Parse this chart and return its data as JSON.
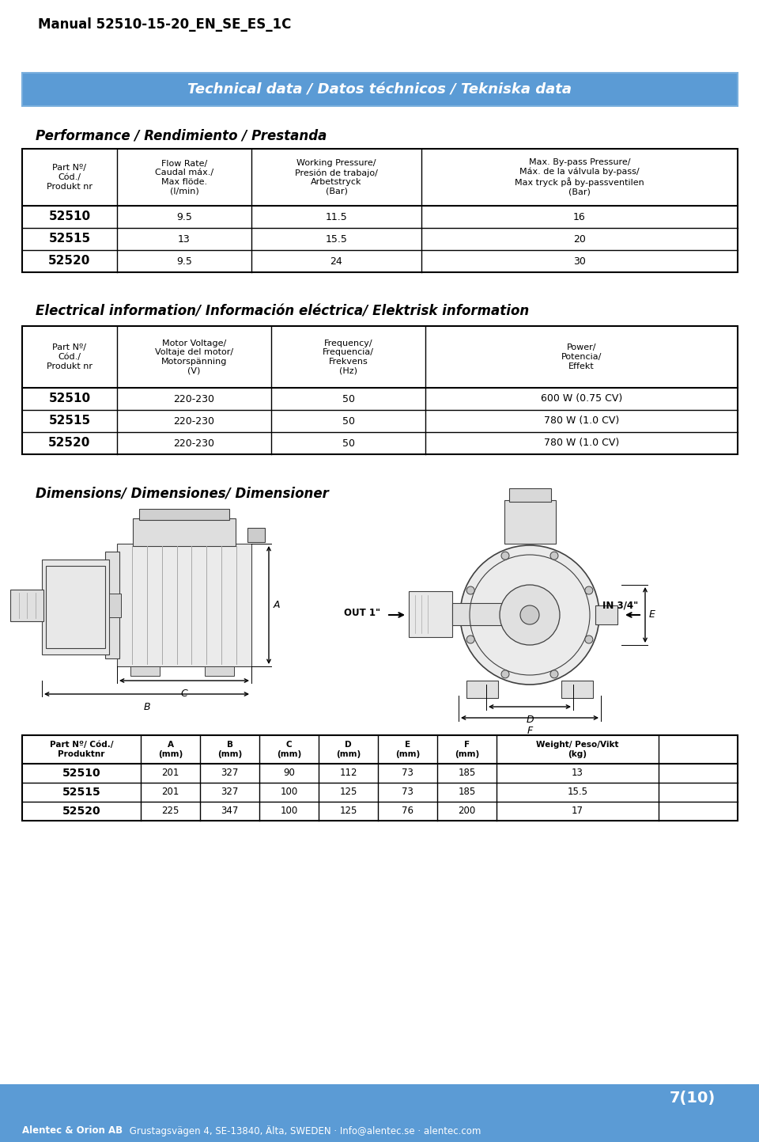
{
  "page_title": "Manual 52510-15-20_EN_SE_ES_1C",
  "banner_text": "Technical data / Datos téchnicos / Tekniska data",
  "banner_color": "#5B9BD5",
  "banner_text_color": "#FFFFFF",
  "section1_title": "Performance / Rendimiento / Prestanda",
  "perf_headers": [
    "Part Nº/\nCód./\nProdukt nr",
    "Flow Rate/\nCaudal máx./\nMax flöde.\n(l/min)",
    "Working Pressure/\nPresión de trabajo/\nArbetstryck\n(Bar)",
    "Max. By-pass Pressure/\nMáx. de la válvula by-pass/\nMax tryck på by-passventilen\n(Bar)"
  ],
  "perf_rows": [
    [
      "52510",
      "9.5",
      "11.5",
      "16"
    ],
    [
      "52515",
      "13",
      "15.5",
      "20"
    ],
    [
      "52520",
      "9.5",
      "24",
      "30"
    ]
  ],
  "section2_title": "Electrical information/ Información eléctrica/ Elektrisk information",
  "elec_headers": [
    "Part Nº/\nCód./\nProdukt nr",
    "Motor Voltage/\nVoltaje del motor/\nMotorspänning\n(V)",
    "Frequency/\nFrequencia/\nFrekvens\n(Hz)",
    "Power/\nPotencia/\nEffekt"
  ],
  "elec_rows": [
    [
      "52510",
      "220-230",
      "50",
      "600 W (0.75 CV)"
    ],
    [
      "52515",
      "220-230",
      "50",
      "780 W (1.0 CV)"
    ],
    [
      "52520",
      "220-230",
      "50",
      "780 W (1.0 CV)"
    ]
  ],
  "section3_title": "Dimensions/ Dimensiones/ Dimensioner",
  "dim_headers": [
    "Part Nº/ Cód./\nProduktnr",
    "A\n(mm)",
    "B\n(mm)",
    "C\n(mm)",
    "D\n(mm)",
    "E\n(mm)",
    "F\n(mm)",
    "Weight/ Peso/Vikt\n(kg)"
  ],
  "dim_rows": [
    [
      "52510",
      "201",
      "327",
      "90",
      "112",
      "73",
      "185",
      "13"
    ],
    [
      "52515",
      "201",
      "327",
      "100",
      "125",
      "73",
      "185",
      "15.5"
    ],
    [
      "52520",
      "225",
      "347",
      "100",
      "125",
      "76",
      "200",
      "17"
    ]
  ],
  "footer_bold": "Alentec & Orion AB",
  "footer_rest": " Grustagsvägen 4, SE-13840, Älta, SWEDEN · Info@alentec.se · alentec.com",
  "page_number": "7(10)",
  "bg_color": "#FFFFFF",
  "footer_bg": "#5B9BD5",
  "footer_text_color": "#FFFFFF",
  "line_color": "#404040",
  "diag_color": "#E8E8E8",
  "diag_edge": "#404040"
}
